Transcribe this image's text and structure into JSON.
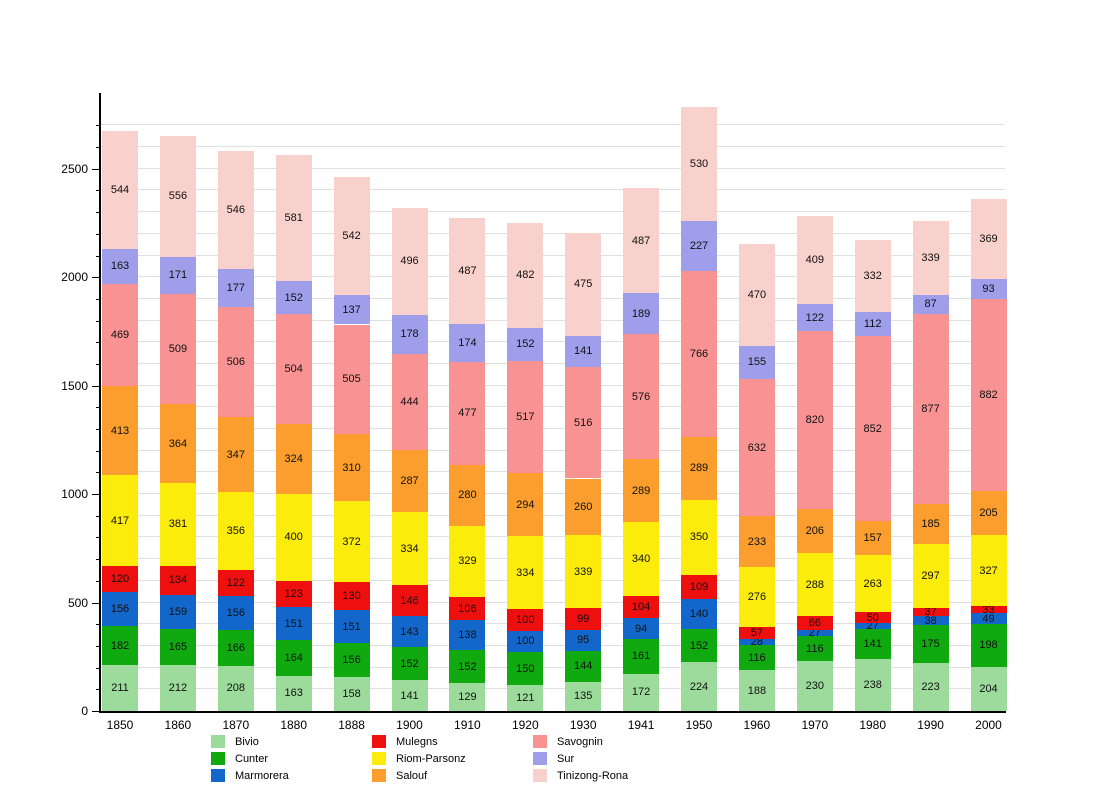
{
  "chart_data": {
    "type": "bar",
    "stacked": true,
    "title": "",
    "xlabel": "",
    "ylabel": "",
    "categories": [
      "1850",
      "1860",
      "1870",
      "1880",
      "1888",
      "1900",
      "1910",
      "1920",
      "1930",
      "1941",
      "1950",
      "1960",
      "1970",
      "1980",
      "1990",
      "2000"
    ],
    "series": [
      {
        "name": "Bivio",
        "color": "#9cdb9c",
        "values": [
          211,
          212,
          208,
          163,
          158,
          141,
          129,
          121,
          135,
          172,
          224,
          188,
          230,
          238,
          223,
          204
        ]
      },
      {
        "name": "Cunter",
        "color": "#10a910",
        "values": [
          182,
          165,
          166,
          164,
          156,
          152,
          152,
          150,
          144,
          161,
          152,
          116,
          116,
          141,
          175,
          198
        ]
      },
      {
        "name": "Marmorera",
        "color": "#1367cb",
        "values": [
          156,
          159,
          156,
          151,
          151,
          143,
          138,
          100,
          95,
          94,
          140,
          28,
          27,
          27,
          38,
          49
        ]
      },
      {
        "name": "Mulegns",
        "color": "#ee0f0f",
        "values": [
          120,
          134,
          122,
          123,
          130,
          146,
          106,
          100,
          99,
          104,
          109,
          57,
          66,
          50,
          37,
          33
        ]
      },
      {
        "name": "Riom-Parsonz",
        "color": "#fcec0c",
        "values": [
          417,
          381,
          356,
          400,
          372,
          334,
          329,
          334,
          339,
          340,
          350,
          276,
          288,
          263,
          297,
          327
        ]
      },
      {
        "name": "Salouf",
        "color": "#fb9e2e",
        "values": [
          413,
          364,
          347,
          324,
          310,
          287,
          280,
          294,
          260,
          289,
          289,
          233,
          206,
          157,
          185,
          205
        ]
      },
      {
        "name": "Savognin",
        "color": "#f99393",
        "values": [
          469,
          509,
          506,
          504,
          505,
          444,
          477,
          517,
          516,
          576,
          766,
          632,
          820,
          852,
          877,
          882
        ]
      },
      {
        "name": "Sur",
        "color": "#9e9eea",
        "values": [
          163,
          171,
          177,
          152,
          137,
          178,
          174,
          152,
          141,
          189,
          227,
          155,
          122,
          112,
          87,
          93
        ]
      },
      {
        "name": "Tinizong-Rona",
        "color": "#f8d1cc",
        "values": [
          544,
          556,
          546,
          581,
          542,
          496,
          487,
          482,
          475,
          487,
          530,
          470,
          409,
          332,
          339,
          369
        ]
      }
    ],
    "ylim": [
      0,
      2840
    ],
    "y_major_ticks": [
      "0",
      "500",
      "1000",
      "1500",
      "2000",
      "2500"
    ],
    "y_major_step": 500,
    "y_minor_step": 100,
    "grid": true,
    "legend_position": "bottom",
    "legend_columns": 3,
    "axis_color": "#000000",
    "grid_color": "#e0e0e0"
  }
}
